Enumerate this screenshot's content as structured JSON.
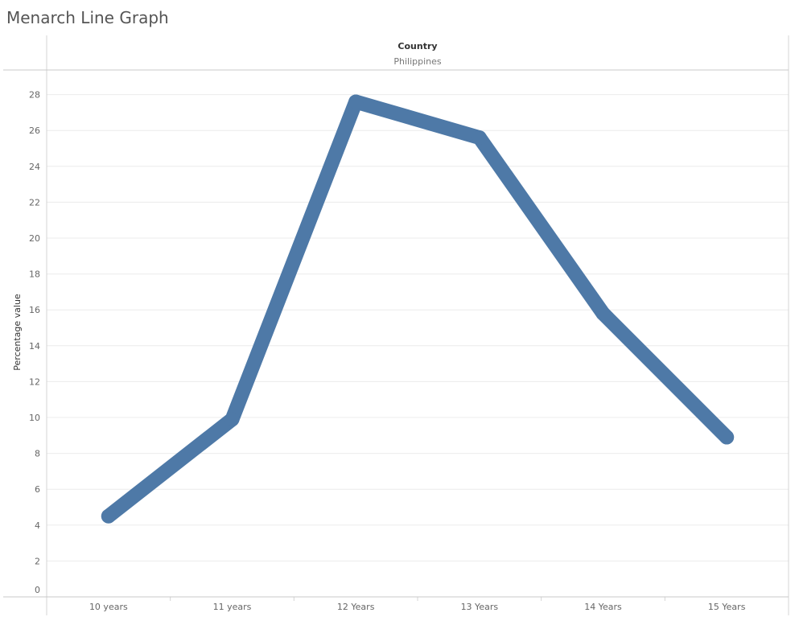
{
  "page": {
    "title": "Menarch Line Graph"
  },
  "chart_data": {
    "type": "line",
    "header_title": "Country",
    "header_value": "Philippines",
    "xlabel": "",
    "ylabel": "Percentage value",
    "categories": [
      "10 years",
      "11 years",
      "12 Years",
      "13 Years",
      "14 Years",
      "15 Years"
    ],
    "values": [
      4.5,
      9.9,
      27.6,
      25.6,
      15.8,
      8.9
    ],
    "ylim": [
      0,
      29
    ],
    "yticks": [
      0,
      2,
      4,
      6,
      8,
      10,
      12,
      14,
      16,
      18,
      20,
      22,
      24,
      26,
      28
    ],
    "grid": true,
    "line_color": "#4e79a7"
  }
}
